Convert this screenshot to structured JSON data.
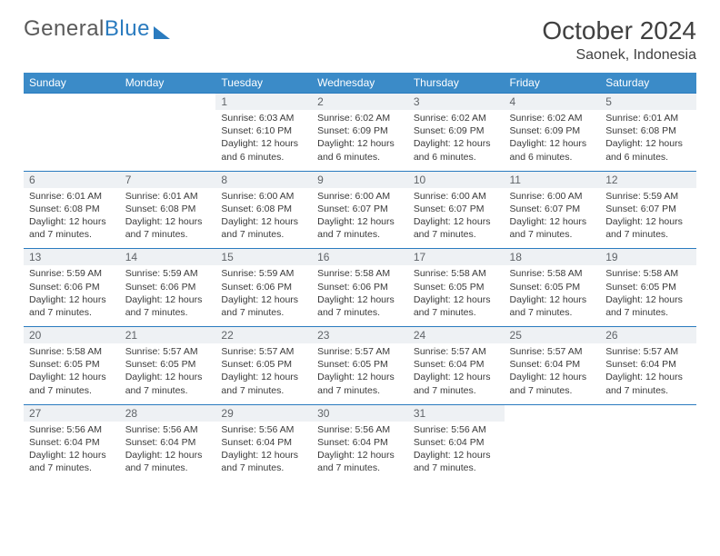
{
  "brand": {
    "word1": "General",
    "word2": "Blue"
  },
  "title": {
    "month_year": "October 2024",
    "location": "Saonek, Indonesia"
  },
  "day_headers": [
    "Sunday",
    "Monday",
    "Tuesday",
    "Wednesday",
    "Thursday",
    "Friday",
    "Saturday"
  ],
  "colors": {
    "header_bg": "#3b8bc8",
    "header_text": "#ffffff",
    "daynum_bg": "#eef1f4",
    "daynum_text": "#606468",
    "rule": "#2a7bbf",
    "body_text": "#3a3a3a",
    "logo_gray": "#5a5a5a",
    "logo_blue": "#2a7bbf"
  },
  "typography": {
    "title_fontsize": 28,
    "location_fontsize": 16,
    "header_fontsize": 12,
    "daynum_fontsize": 12,
    "cell_fontsize": 10.5
  },
  "weeks": [
    [
      null,
      null,
      {
        "n": "1",
        "sr": "Sunrise: 6:03 AM",
        "ss": "Sunset: 6:10 PM",
        "dl": "Daylight: 12 hours and 6 minutes."
      },
      {
        "n": "2",
        "sr": "Sunrise: 6:02 AM",
        "ss": "Sunset: 6:09 PM",
        "dl": "Daylight: 12 hours and 6 minutes."
      },
      {
        "n": "3",
        "sr": "Sunrise: 6:02 AM",
        "ss": "Sunset: 6:09 PM",
        "dl": "Daylight: 12 hours and 6 minutes."
      },
      {
        "n": "4",
        "sr": "Sunrise: 6:02 AM",
        "ss": "Sunset: 6:09 PM",
        "dl": "Daylight: 12 hours and 6 minutes."
      },
      {
        "n": "5",
        "sr": "Sunrise: 6:01 AM",
        "ss": "Sunset: 6:08 PM",
        "dl": "Daylight: 12 hours and 6 minutes."
      }
    ],
    [
      {
        "n": "6",
        "sr": "Sunrise: 6:01 AM",
        "ss": "Sunset: 6:08 PM",
        "dl": "Daylight: 12 hours and 7 minutes."
      },
      {
        "n": "7",
        "sr": "Sunrise: 6:01 AM",
        "ss": "Sunset: 6:08 PM",
        "dl": "Daylight: 12 hours and 7 minutes."
      },
      {
        "n": "8",
        "sr": "Sunrise: 6:00 AM",
        "ss": "Sunset: 6:08 PM",
        "dl": "Daylight: 12 hours and 7 minutes."
      },
      {
        "n": "9",
        "sr": "Sunrise: 6:00 AM",
        "ss": "Sunset: 6:07 PM",
        "dl": "Daylight: 12 hours and 7 minutes."
      },
      {
        "n": "10",
        "sr": "Sunrise: 6:00 AM",
        "ss": "Sunset: 6:07 PM",
        "dl": "Daylight: 12 hours and 7 minutes."
      },
      {
        "n": "11",
        "sr": "Sunrise: 6:00 AM",
        "ss": "Sunset: 6:07 PM",
        "dl": "Daylight: 12 hours and 7 minutes."
      },
      {
        "n": "12",
        "sr": "Sunrise: 5:59 AM",
        "ss": "Sunset: 6:07 PM",
        "dl": "Daylight: 12 hours and 7 minutes."
      }
    ],
    [
      {
        "n": "13",
        "sr": "Sunrise: 5:59 AM",
        "ss": "Sunset: 6:06 PM",
        "dl": "Daylight: 12 hours and 7 minutes."
      },
      {
        "n": "14",
        "sr": "Sunrise: 5:59 AM",
        "ss": "Sunset: 6:06 PM",
        "dl": "Daylight: 12 hours and 7 minutes."
      },
      {
        "n": "15",
        "sr": "Sunrise: 5:59 AM",
        "ss": "Sunset: 6:06 PM",
        "dl": "Daylight: 12 hours and 7 minutes."
      },
      {
        "n": "16",
        "sr": "Sunrise: 5:58 AM",
        "ss": "Sunset: 6:06 PM",
        "dl": "Daylight: 12 hours and 7 minutes."
      },
      {
        "n": "17",
        "sr": "Sunrise: 5:58 AM",
        "ss": "Sunset: 6:05 PM",
        "dl": "Daylight: 12 hours and 7 minutes."
      },
      {
        "n": "18",
        "sr": "Sunrise: 5:58 AM",
        "ss": "Sunset: 6:05 PM",
        "dl": "Daylight: 12 hours and 7 minutes."
      },
      {
        "n": "19",
        "sr": "Sunrise: 5:58 AM",
        "ss": "Sunset: 6:05 PM",
        "dl": "Daylight: 12 hours and 7 minutes."
      }
    ],
    [
      {
        "n": "20",
        "sr": "Sunrise: 5:58 AM",
        "ss": "Sunset: 6:05 PM",
        "dl": "Daylight: 12 hours and 7 minutes."
      },
      {
        "n": "21",
        "sr": "Sunrise: 5:57 AM",
        "ss": "Sunset: 6:05 PM",
        "dl": "Daylight: 12 hours and 7 minutes."
      },
      {
        "n": "22",
        "sr": "Sunrise: 5:57 AM",
        "ss": "Sunset: 6:05 PM",
        "dl": "Daylight: 12 hours and 7 minutes."
      },
      {
        "n": "23",
        "sr": "Sunrise: 5:57 AM",
        "ss": "Sunset: 6:05 PM",
        "dl": "Daylight: 12 hours and 7 minutes."
      },
      {
        "n": "24",
        "sr": "Sunrise: 5:57 AM",
        "ss": "Sunset: 6:04 PM",
        "dl": "Daylight: 12 hours and 7 minutes."
      },
      {
        "n": "25",
        "sr": "Sunrise: 5:57 AM",
        "ss": "Sunset: 6:04 PM",
        "dl": "Daylight: 12 hours and 7 minutes."
      },
      {
        "n": "26",
        "sr": "Sunrise: 5:57 AM",
        "ss": "Sunset: 6:04 PM",
        "dl": "Daylight: 12 hours and 7 minutes."
      }
    ],
    [
      {
        "n": "27",
        "sr": "Sunrise: 5:56 AM",
        "ss": "Sunset: 6:04 PM",
        "dl": "Daylight: 12 hours and 7 minutes."
      },
      {
        "n": "28",
        "sr": "Sunrise: 5:56 AM",
        "ss": "Sunset: 6:04 PM",
        "dl": "Daylight: 12 hours and 7 minutes."
      },
      {
        "n": "29",
        "sr": "Sunrise: 5:56 AM",
        "ss": "Sunset: 6:04 PM",
        "dl": "Daylight: 12 hours and 7 minutes."
      },
      {
        "n": "30",
        "sr": "Sunrise: 5:56 AM",
        "ss": "Sunset: 6:04 PM",
        "dl": "Daylight: 12 hours and 7 minutes."
      },
      {
        "n": "31",
        "sr": "Sunrise: 5:56 AM",
        "ss": "Sunset: 6:04 PM",
        "dl": "Daylight: 12 hours and 7 minutes."
      },
      null,
      null
    ]
  ]
}
